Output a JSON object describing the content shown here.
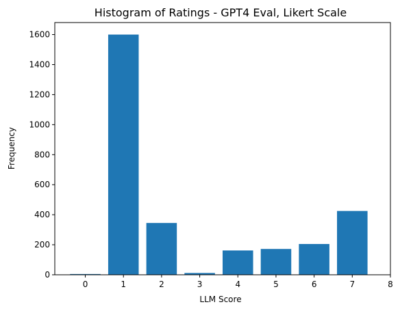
{
  "chart_data": {
    "type": "bar",
    "title": "Histogram of Ratings - GPT4 Eval, Likert Scale",
    "xlabel": "LLM Score",
    "ylabel": "Frequency",
    "categories": [
      "0",
      "1",
      "2",
      "3",
      "4",
      "5",
      "6",
      "7"
    ],
    "x": [
      0,
      1,
      2,
      3,
      4,
      5,
      6,
      7
    ],
    "values": [
      5,
      1600,
      345,
      12,
      162,
      172,
      205,
      425
    ],
    "xlim": [
      -0.8,
      8
    ],
    "ylim": [
      0,
      1680
    ],
    "xticks": [
      0,
      1,
      2,
      3,
      4,
      5,
      6,
      7,
      8
    ],
    "xtick_labels": [
      "0",
      "1",
      "2",
      "3",
      "4",
      "5",
      "6",
      "7",
      "8"
    ],
    "yticks": [
      0,
      200,
      400,
      600,
      800,
      1000,
      1200,
      1400,
      1600
    ],
    "ytick_labels": [
      "0",
      "200",
      "400",
      "600",
      "800",
      "1000",
      "1200",
      "1400",
      "1600"
    ],
    "bar_width": 0.8,
    "bar_color": "#1f77b4",
    "grid": false,
    "legend": "none"
  }
}
